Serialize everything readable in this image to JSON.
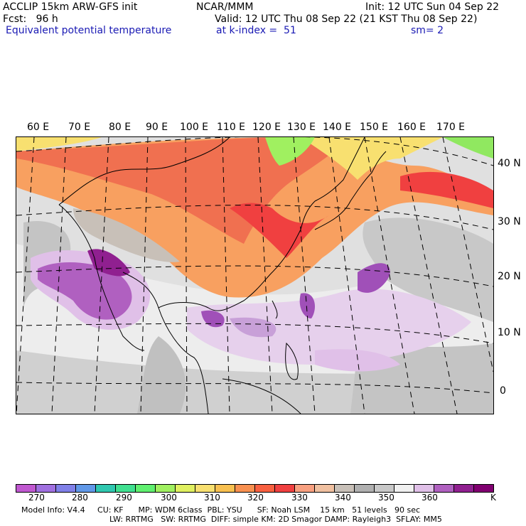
{
  "header": {
    "line1_left": "ACCLIP 15km ARW-GFS init",
    "line1_center": "NCAR/MMM",
    "line1_right": "Init: 12 UTC Sun 04 Sep 22",
    "line2_left": "Fcst:   96 h",
    "line2_right": "Valid: 12 UTC Thu 08 Sep 22 (21 KST Thu 08 Sep 22)",
    "line3_left": "Equivalent potential temperature",
    "line3_center": "at k-index =  51",
    "line3_right": "sm= 2"
  },
  "map": {
    "longitude_labels": [
      "60 E",
      "70 E",
      "80 E",
      "90 E",
      "100 E",
      "110 E",
      "120 E",
      "130 E",
      "140 E",
      "150 E",
      "160 E",
      "170 E"
    ],
    "latitude_labels": [
      "40 N",
      "30 N",
      "20 N",
      "10 N",
      "0"
    ]
  },
  "colorbar": {
    "unit": "K",
    "tick_labels": [
      "270",
      "280",
      "290",
      "300",
      "310",
      "320",
      "330",
      "340",
      "350",
      "360"
    ],
    "colors": [
      "#c058d0",
      "#a070e0",
      "#8080e8",
      "#6098e8",
      "#30c8b0",
      "#40e090",
      "#60f070",
      "#a0f060",
      "#e0f060",
      "#f8e070",
      "#f8c050",
      "#f89050",
      "#f86040",
      "#f04040",
      "#f8a080",
      "#f0c0a0",
      "#c8c0b8",
      "#b0b0b0",
      "#c8c8c8",
      "#f0f0f0",
      "#e0c0e8",
      "#b060c0",
      "#902090",
      "#800070"
    ]
  },
  "footer": {
    "line1": "Model Info: V4.4     CU: KF      MP: WDM 6class  PBL: YSU      SF: Noah LSM    15 km   51 levels   90 sec",
    "line2": "LW: RRTMG   SW: RRTMG  DIFF: simple KM: 2D Smagor DAMP: Rayleigh3  SFLAY: MM5"
  }
}
